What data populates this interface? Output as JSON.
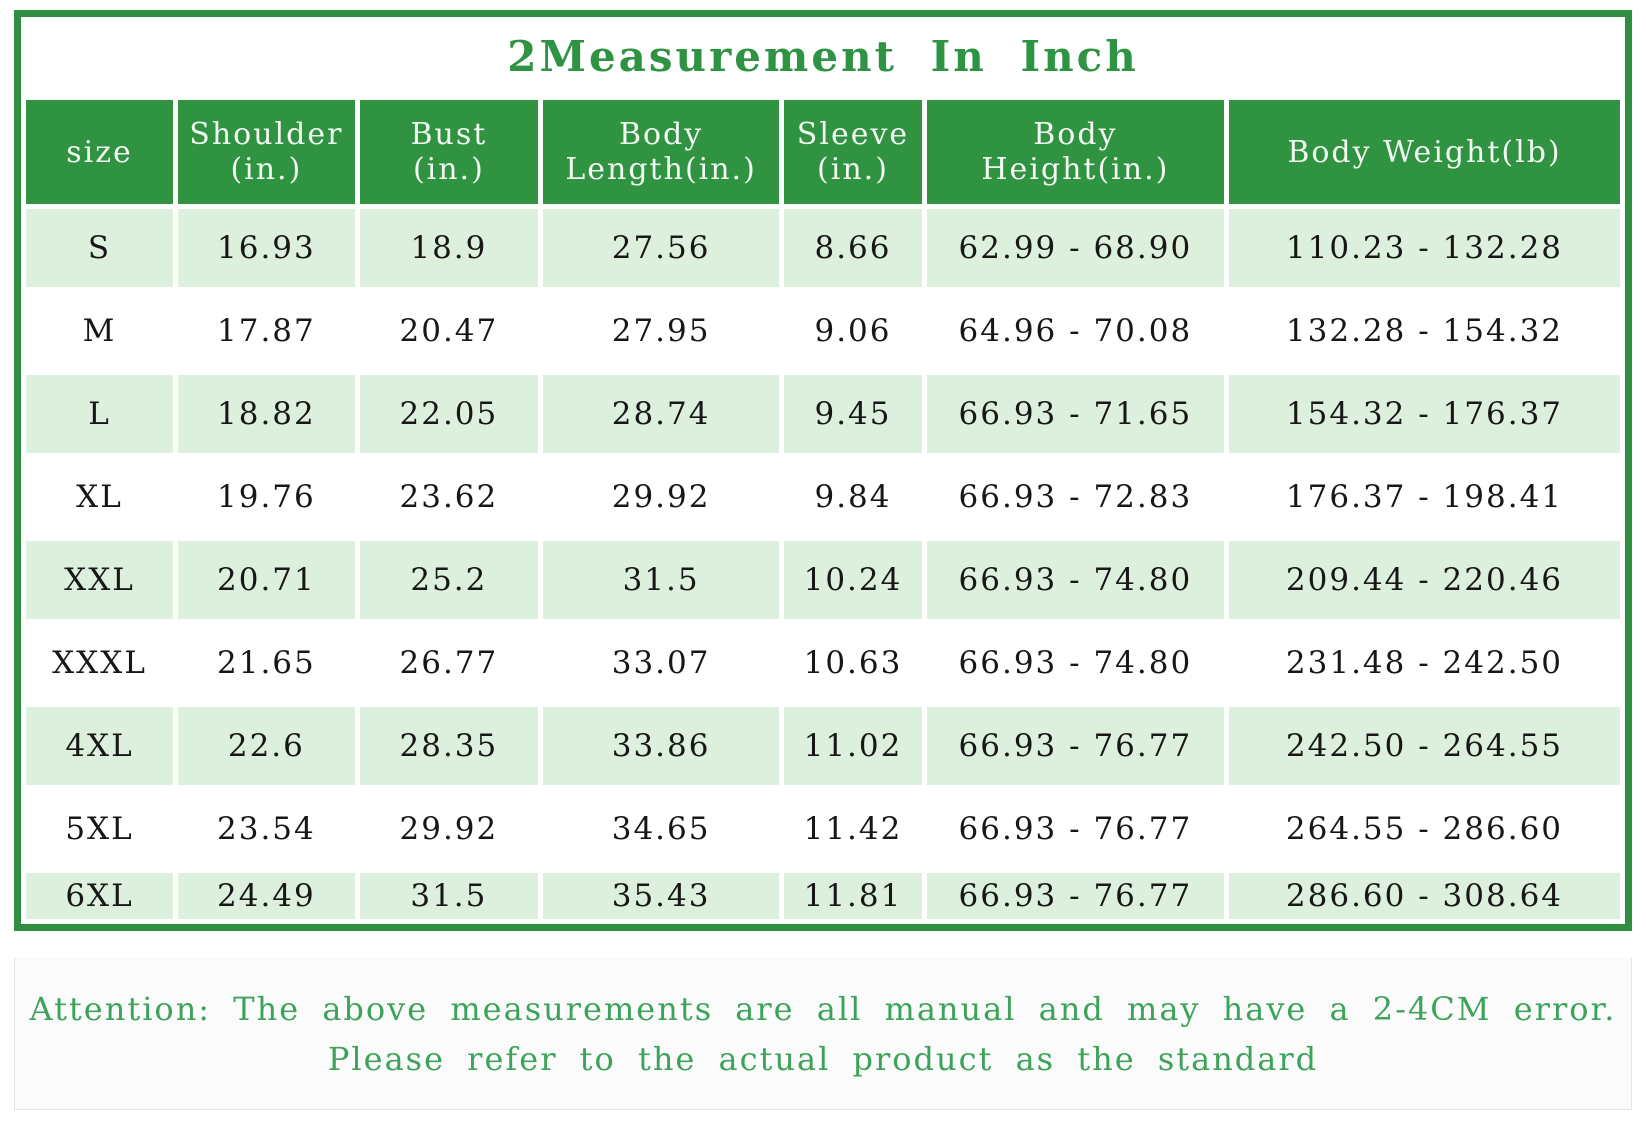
{
  "title": "2Measurement In Inch",
  "colors": {
    "frame-green": "#2e8f41",
    "header-green": "#2f9342",
    "row-green": "#ddf0dd",
    "title-green": "#2e9342",
    "note-green": "#3da35a"
  },
  "chart_data": {
    "type": "table",
    "title": "2Measurement In Inch",
    "columns": [
      "size",
      "Shoulder\n(in.)",
      "Bust\n(in.)",
      "Body\nLength(in.)",
      "Sleeve\n(in.)",
      "Body\nHeight(in.)",
      "Body Weight(lb)"
    ],
    "rows": [
      [
        "S",
        "16.93",
        "18.9",
        "27.56",
        "8.66",
        "62.99 - 68.90",
        "110.23 - 132.28"
      ],
      [
        "M",
        "17.87",
        "20.47",
        "27.95",
        "9.06",
        "64.96 - 70.08",
        "132.28 - 154.32"
      ],
      [
        "L",
        "18.82",
        "22.05",
        "28.74",
        "9.45",
        "66.93 - 71.65",
        "154.32 - 176.37"
      ],
      [
        "XL",
        "19.76",
        "23.62",
        "29.92",
        "9.84",
        "66.93 - 72.83",
        "176.37 - 198.41"
      ],
      [
        "XXL",
        "20.71",
        "25.2",
        "31.5",
        "10.24",
        "66.93 - 74.80",
        "209.44 - 220.46"
      ],
      [
        "XXXL",
        "21.65",
        "26.77",
        "33.07",
        "10.63",
        "66.93 - 74.80",
        "231.48 - 242.50"
      ],
      [
        "4XL",
        "22.6",
        "28.35",
        "33.86",
        "11.02",
        "66.93 - 76.77",
        "242.50 - 264.55"
      ],
      [
        "5XL",
        "23.54",
        "29.92",
        "34.65",
        "11.42",
        "66.93 - 76.77",
        "264.55 - 286.60"
      ],
      [
        "6XL",
        "24.49",
        "31.5",
        "35.43",
        "11.81",
        "66.93 - 76.77",
        "286.60 - 308.64"
      ]
    ]
  },
  "note": {
    "line1": "Attention: The above measurements are all manual and may have a 2-4CM error.",
    "line2": "Please refer to the actual product as the standard"
  }
}
